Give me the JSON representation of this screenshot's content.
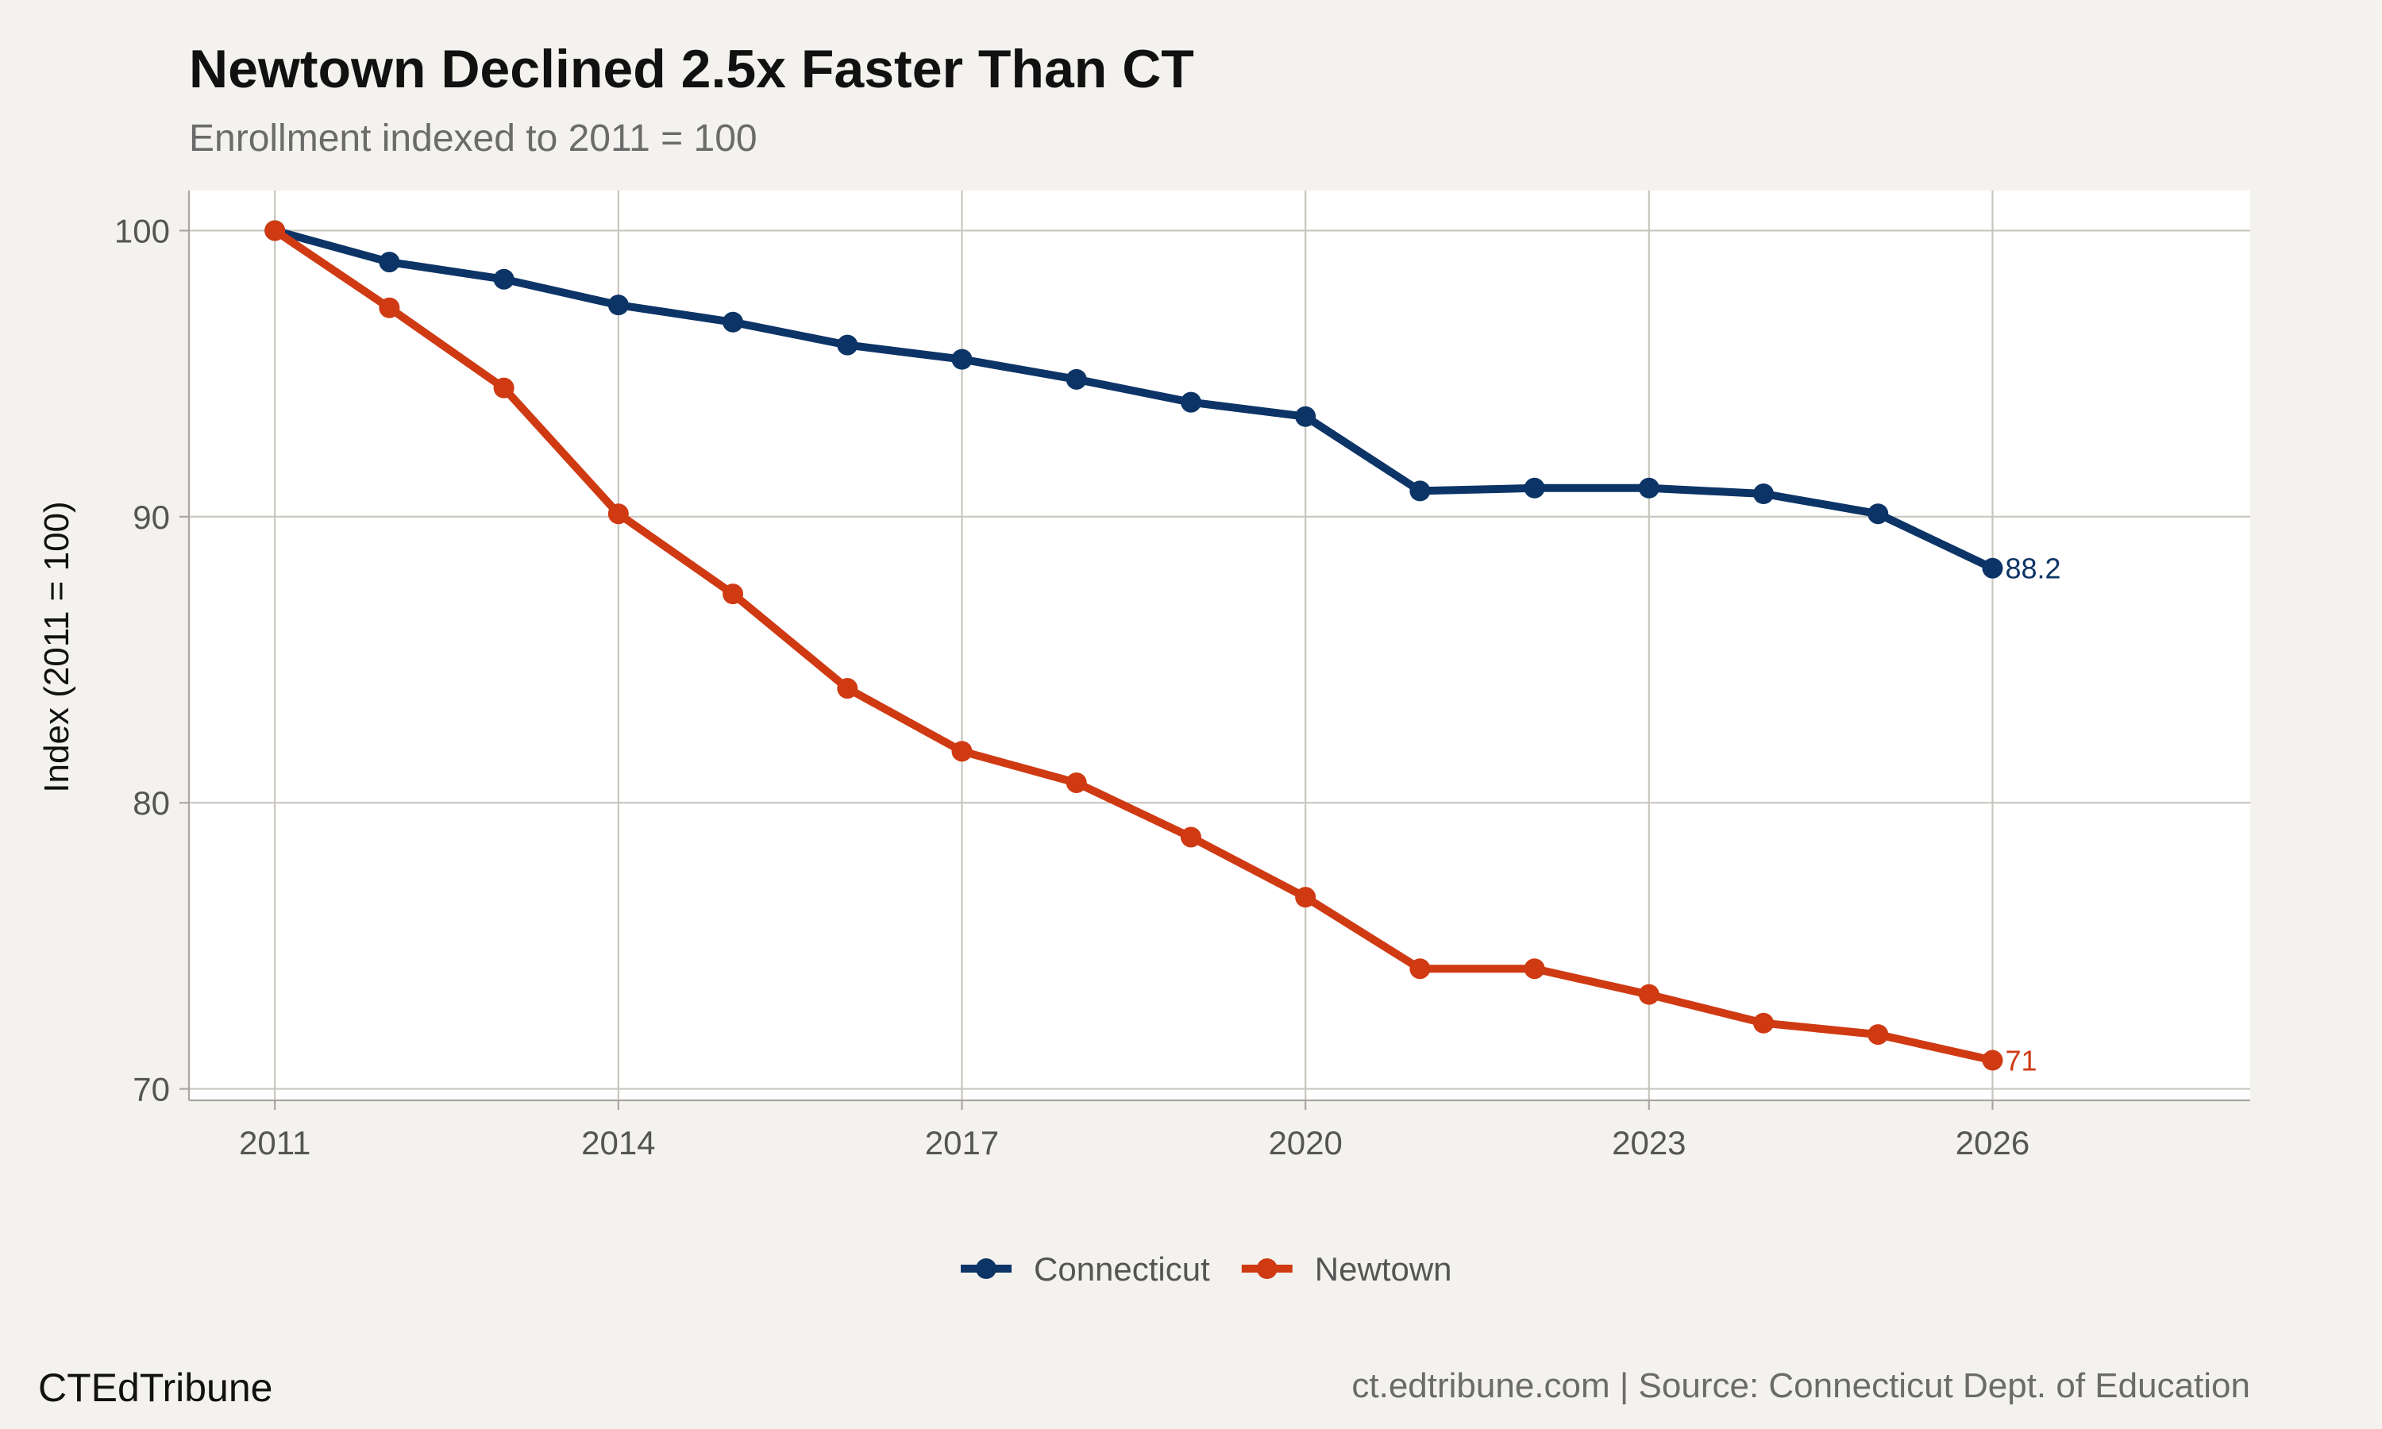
{
  "title": "Newtown Declined 2.5x Faster Than CT",
  "subtitle": "Enrollment indexed to 2011 = 100",
  "footer": {
    "brand": "CTEdTribune",
    "source": "ct.edtribune.com | Source: Connecticut Dept. of Education"
  },
  "colors": {
    "connecticut": "#0d3466",
    "newtown": "#cf3a13",
    "background": "#f4f2ee",
    "panel": "#ffffff"
  },
  "chart_data": {
    "type": "line",
    "title": "Newtown Declined 2.5x Faster Than CT",
    "subtitle": "Enrollment indexed to 2011 = 100",
    "xlabel": "",
    "ylabel": "Index (2011 = 100)",
    "xlim": [
      2010.25,
      2028.25
    ],
    "ylim": [
      69.6,
      101.4
    ],
    "x_ticks": [
      2011,
      2014,
      2017,
      2020,
      2023,
      2026
    ],
    "y_ticks": [
      70,
      80,
      90,
      100
    ],
    "grid": true,
    "legend_position": "bottom",
    "x": [
      2011,
      2012,
      2013,
      2014,
      2015,
      2016,
      2017,
      2018,
      2019,
      2020,
      2021,
      2022,
      2023,
      2024,
      2025,
      2026
    ],
    "series": [
      {
        "name": "Connecticut",
        "color": "#0d3466",
        "values": [
          100,
          98.9,
          98.3,
          97.4,
          96.8,
          96.0,
          95.5,
          94.8,
          94.0,
          93.5,
          90.9,
          91.0,
          91.0,
          90.8,
          90.1,
          88.2
        ],
        "end_label": "88.2"
      },
      {
        "name": "Newtown",
        "color": "#cf3a13",
        "values": [
          100,
          97.3,
          94.5,
          90.1,
          87.3,
          84.0,
          81.8,
          80.7,
          78.8,
          76.7,
          74.2,
          74.2,
          73.3,
          72.3,
          71.9,
          71.0
        ],
        "end_label": "71"
      }
    ]
  }
}
